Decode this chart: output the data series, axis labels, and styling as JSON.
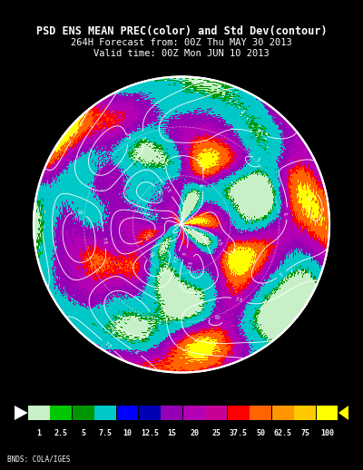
{
  "title_line1": "PSD ENS MEAN PREC(color) and Std Dev(contour)",
  "title_line2": "264H Forecast from: 00Z Thu MAY 30 2013",
  "title_line3": "Valid time: 00Z Mon JUN 10 2013",
  "background_color": "#000000",
  "map_bg_color": "#000000",
  "colorbar_levels": [
    1,
    2.5,
    5,
    7.5,
    10,
    12.5,
    15,
    20,
    25,
    37.5,
    50,
    62.5,
    75,
    100
  ],
  "colorbar_colors": [
    "#c8f0c8",
    "#00c800",
    "#009600",
    "#00c8c8",
    "#0000ff",
    "#0000b4",
    "#9600b4",
    "#b400b4",
    "#c80096",
    "#ff0000",
    "#ff6400",
    "#ff9600",
    "#ffc800",
    "#ffff00"
  ],
  "colorbar_label_color": "#ffffff",
  "title_color": "#ffffff",
  "credit_text": "BNDS: COLA/IGES",
  "credit_color": "#ffffff",
  "fig_width": 4.0,
  "fig_height": 5.18,
  "dpi": 100
}
